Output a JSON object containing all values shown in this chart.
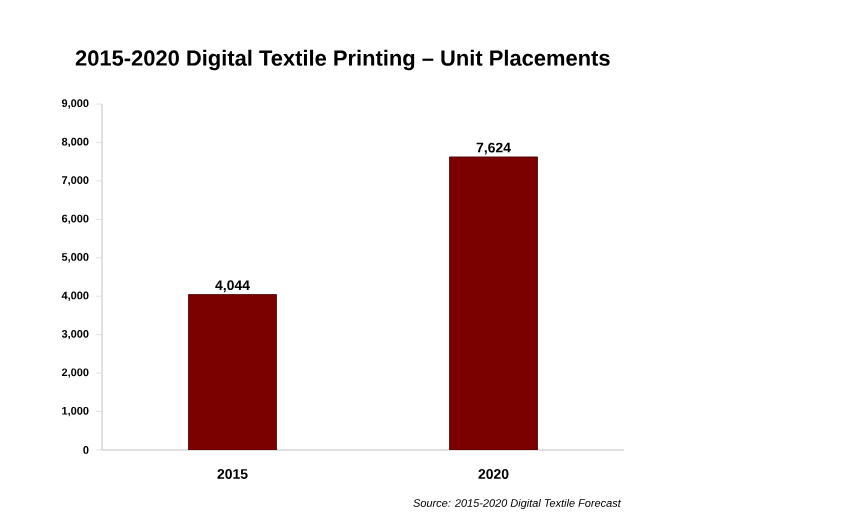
{
  "chart_data": {
    "type": "bar",
    "title": "2015-2020 Digital Textile Printing – Unit Placements",
    "categories": [
      "2015",
      "2020"
    ],
    "values": [
      4044,
      7624
    ],
    "value_labels": [
      "4,044",
      "7,624"
    ],
    "color": "#7b0000",
    "ylim": [
      0,
      9000
    ],
    "yticks": [
      0,
      {
        "value": 1000,
        "label": "1,000"
      },
      {
        "value": 2000,
        "label": "2,000"
      },
      {
        "value": 3000,
        "label": "3,000"
      },
      {
        "value": 4000,
        "label": "4,000"
      },
      {
        "value": 5000,
        "label": "5,000"
      },
      {
        "value": 6000,
        "label": "6,000"
      },
      {
        "value": 7000,
        "label": "7,000"
      },
      {
        "value": 8000,
        "label": "8,000"
      },
      {
        "value": 9000,
        "label": "9,000"
      }
    ],
    "grid": false,
    "annotations": [
      "*Source: 2015-2020 Digital Textile Forecast*"
    ]
  }
}
